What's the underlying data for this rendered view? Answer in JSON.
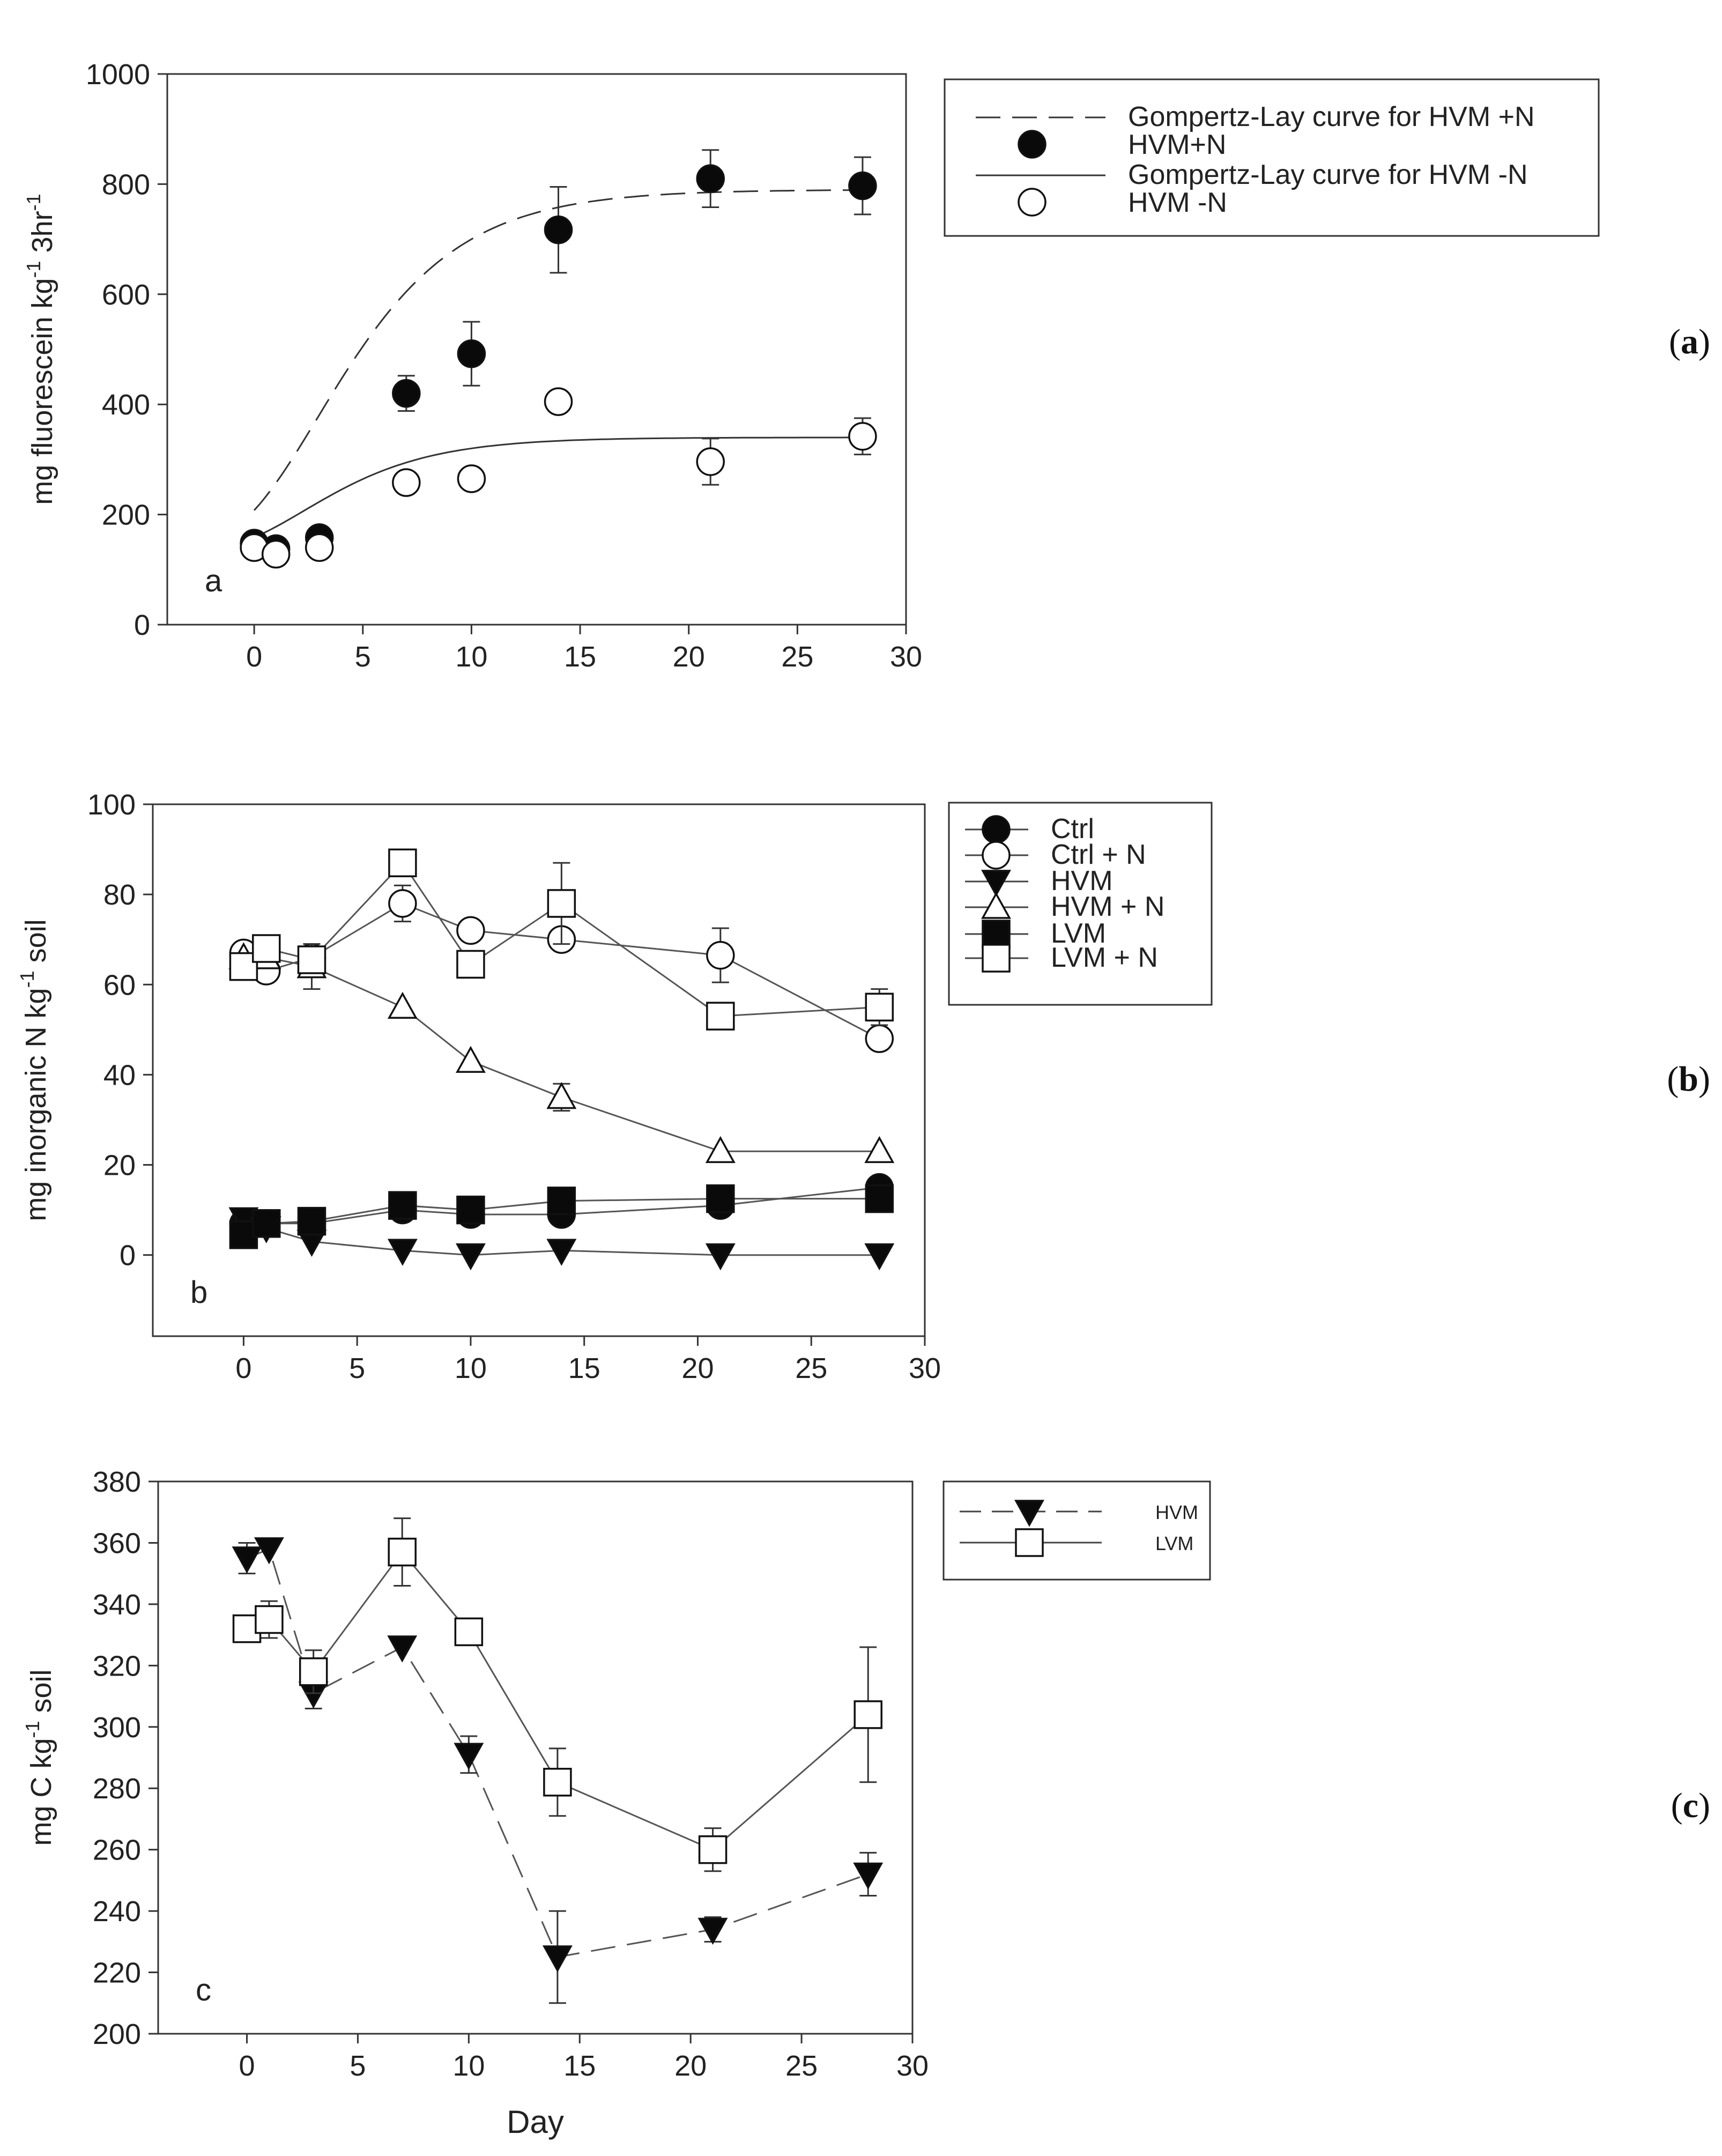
{
  "chart_data": [
    {
      "type": "scatter",
      "panel": "a",
      "panel_caption": [
        "(",
        "a",
        ")"
      ],
      "inset_label": "a",
      "ylabel": "mg fluorescein kg-1 3hr-1",
      "ylabel_parts": [
        "mg fluorescein kg",
        "-1",
        " 3hr",
        "-1"
      ],
      "xlabel": "",
      "xlim": [
        -4,
        30
      ],
      "ylim": [
        0,
        1000
      ],
      "xticks": [
        0,
        5,
        10,
        15,
        20,
        25,
        30
      ],
      "yticks": [
        0,
        200,
        400,
        600,
        800,
        1000
      ],
      "legend_position": "outside-right",
      "series": [
        {
          "name": "HVM+N",
          "marker": "filled-circle",
          "line": "none",
          "x": [
            0,
            1,
            3,
            7,
            10,
            14,
            21,
            28
          ],
          "y": [
            148,
            138,
            158,
            420,
            492,
            717,
            810,
            797
          ],
          "err": [
            8,
            8,
            10,
            32,
            58,
            78,
            52,
            52
          ]
        },
        {
          "name": "HVM -N",
          "marker": "open-circle",
          "line": "none",
          "x": [
            0,
            1,
            3,
            7,
            10,
            14,
            21,
            28
          ],
          "y": [
            140,
            128,
            140,
            258,
            265,
            405,
            296,
            342
          ],
          "err": [
            6,
            6,
            6,
            12,
            12,
            12,
            42,
            33
          ]
        }
      ],
      "curves": [
        {
          "name": "Gompertz-Lay curve for HVM +N",
          "style": "dashed",
          "lower": 135,
          "upper": 790,
          "b": 2.2,
          "k": 0.27
        },
        {
          "name": "Gompertz-Lay curve for HVM -N",
          "style": "solid",
          "lower": 130,
          "upper": 340,
          "b": 2.0,
          "k": 0.3
        }
      ],
      "legend": [
        {
          "label": "Gompertz-Lay curve for HVM +N",
          "symbol": "dashed-line"
        },
        {
          "label": "HVM+N",
          "symbol": "filled-circle"
        },
        {
          "label": "Gompertz-Lay curve for HVM -N",
          "symbol": "solid-line"
        },
        {
          "label": "HVM -N",
          "symbol": "open-circle"
        }
      ]
    },
    {
      "type": "line",
      "panel": "b",
      "panel_caption": [
        "(",
        "b",
        ")"
      ],
      "inset_label": "b",
      "ylabel": "mg inorganic N kg-1 soil",
      "ylabel_parts": [
        "mg inorganic N kg",
        "-1",
        " soil"
      ],
      "xlabel": "",
      "xlim": [
        -4,
        30
      ],
      "ylim": [
        -18,
        100
      ],
      "xticks": [
        0,
        5,
        10,
        15,
        20,
        25,
        30
      ],
      "yticks": [
        0,
        20,
        40,
        60,
        80,
        100
      ],
      "legend_position": "outside-right",
      "series": [
        {
          "name": "Ctrl",
          "marker": "filled-circle",
          "x": [
            0,
            1,
            3,
            7,
            10,
            14,
            21,
            28
          ],
          "y": [
            7,
            7,
            7,
            10,
            9,
            9,
            11,
            15
          ],
          "err": [
            0,
            0,
            0,
            0,
            0,
            0,
            0,
            0
          ]
        },
        {
          "name": "Ctrl + N",
          "marker": "open-circle",
          "x": [
            0,
            1,
            3,
            7,
            10,
            14,
            21,
            28
          ],
          "y": [
            67,
            63,
            66,
            78,
            72,
            70,
            66.5,
            48
          ],
          "err": [
            0,
            0,
            3,
            4,
            0,
            0,
            6,
            0
          ]
        },
        {
          "name": "HVM",
          "marker": "filled-triangle-down",
          "x": [
            0,
            1,
            3,
            7,
            10,
            14,
            21,
            28
          ],
          "y": [
            8,
            6,
            3,
            1,
            0,
            1,
            0,
            0
          ],
          "err": [
            0,
            0,
            0,
            0,
            0,
            0,
            0,
            0
          ]
        },
        {
          "name": "HVM + N",
          "marker": "open-triangle-up",
          "x": [
            0,
            1,
            3,
            7,
            10,
            14,
            21,
            28
          ],
          "y": [
            66,
            66,
            64,
            55,
            43,
            35,
            23,
            23
          ],
          "err": [
            0,
            0,
            5,
            0,
            0,
            3,
            0,
            0
          ]
        },
        {
          "name": "LVM",
          "marker": "filled-square",
          "x": [
            0,
            1,
            3,
            7,
            10,
            14,
            21,
            28
          ],
          "y": [
            4.5,
            7,
            7.5,
            11,
            10,
            12,
            12.5,
            12.5
          ],
          "err": [
            0,
            0,
            0,
            0,
            0,
            0,
            0,
            0
          ]
        },
        {
          "name": "LVM + N",
          "marker": "open-square",
          "x": [
            0,
            1,
            3,
            7,
            10,
            14,
            21,
            28
          ],
          "y": [
            64,
            68,
            65.5,
            87,
            64.5,
            78,
            53,
            55
          ],
          "err": [
            0,
            0,
            0,
            0,
            0,
            9,
            0,
            4
          ]
        }
      ],
      "legend": [
        {
          "label": "Ctrl",
          "symbol": "filled-circle"
        },
        {
          "label": "Ctrl + N",
          "symbol": "open-circle"
        },
        {
          "label": "HVM",
          "symbol": "filled-triangle-down"
        },
        {
          "label": "HVM + N",
          "symbol": "open-triangle-up"
        },
        {
          "label": "LVM",
          "symbol": "filled-square"
        },
        {
          "label": "LVM + N",
          "symbol": "open-square"
        }
      ]
    },
    {
      "type": "line",
      "panel": "c",
      "panel_caption": [
        "(",
        "c",
        ")"
      ],
      "inset_label": "c",
      "ylabel": "mg C kg-1 soil",
      "ylabel_parts": [
        "mg C kg",
        "-1",
        " soil"
      ],
      "xlabel": "Day",
      "xlim": [
        -4,
        30
      ],
      "ylim": [
        200,
        380
      ],
      "xticks": [
        0,
        5,
        10,
        15,
        20,
        25,
        30
      ],
      "yticks": [
        200,
        220,
        240,
        260,
        280,
        300,
        320,
        340,
        360,
        380
      ],
      "legend_position": "outside-right",
      "series": [
        {
          "name": "HVM",
          "marker": "filled-triangle-down",
          "dash": "dashed",
          "x": [
            0,
            1,
            3,
            7,
            10,
            14,
            21,
            28
          ],
          "y": [
            355,
            358,
            311,
            326,
            291,
            225,
            234,
            252
          ],
          "err": [
            5,
            0,
            5,
            0,
            6,
            15,
            4,
            7
          ]
        },
        {
          "name": "LVM",
          "marker": "open-square",
          "dash": "solid",
          "x": [
            0,
            1,
            3,
            7,
            10,
            14,
            21,
            28
          ],
          "y": [
            332,
            335,
            318,
            357,
            331,
            282,
            260,
            304
          ],
          "err": [
            0,
            6,
            7,
            11,
            0,
            11,
            7,
            22
          ]
        }
      ],
      "legend": [
        {
          "label": "HVM",
          "symbol": "filled-triangle-down-dashed"
        },
        {
          "label": "LVM",
          "symbol": "open-square-solid"
        }
      ]
    }
  ]
}
